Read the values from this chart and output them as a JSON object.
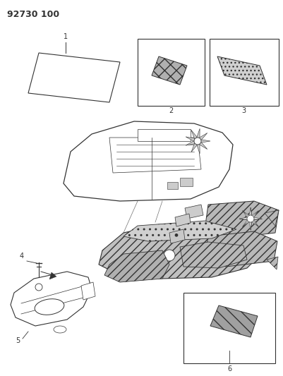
{
  "title": "92730 100",
  "bg_color": "#ffffff",
  "line_color": "#333333",
  "title_fontsize": 9,
  "title_fontweight": "bold",
  "label_fontsize": 7
}
